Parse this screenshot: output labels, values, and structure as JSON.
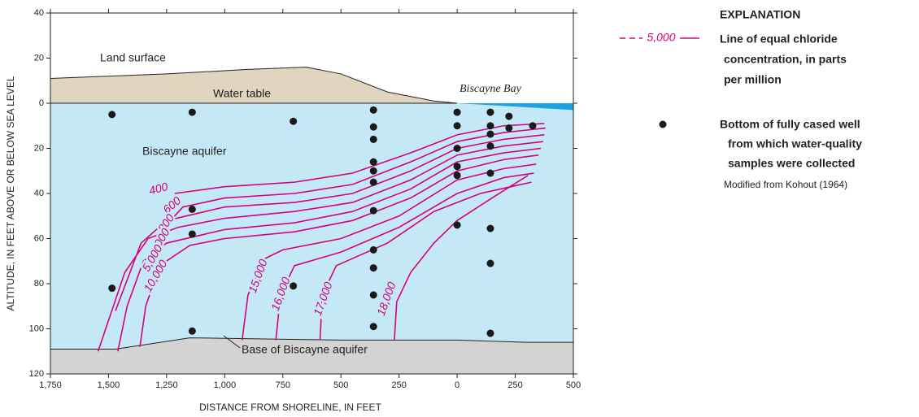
{
  "chart_data": {
    "type": "cross-section",
    "x_label": "DISTANCE FROM SHORELINE, IN FEET",
    "y_label": "ALTITUDE, IN FEET ABOVE OR BELOW SEA LEVEL",
    "xlim": [
      -1750,
      500
    ],
    "ylim": [
      -120,
      40
    ],
    "xticks": [
      {
        "value": -1750,
        "label": "1,750"
      },
      {
        "value": -1500,
        "label": "1,500"
      },
      {
        "value": -1250,
        "label": "1,250"
      },
      {
        "value": -1000,
        "label": "1,000"
      },
      {
        "value": -750,
        "label": "750"
      },
      {
        "value": -500,
        "label": "500"
      },
      {
        "value": -250,
        "label": "250"
      },
      0,
      250,
      500
    ],
    "yticks": [
      40,
      20,
      0,
      {
        "value": -20,
        "label": "20"
      },
      {
        "value": -40,
        "label": "40"
      },
      {
        "value": -60,
        "label": "60"
      },
      {
        "value": -80,
        "label": "80"
      },
      {
        "value": -100,
        "label": "100"
      },
      {
        "value": -120,
        "label": "120"
      }
    ],
    "contour_color": "#d6007e",
    "well_color": "#1a1a1a",
    "land_surface": {
      "x": [
        -1750,
        -1250,
        -900,
        -650,
        -500,
        -300,
        -100,
        0
      ],
      "y": [
        11,
        13,
        15,
        16,
        13,
        5,
        1,
        0
      ]
    },
    "water_table": {
      "x": [
        -1750,
        0
      ],
      "y": [
        0,
        0
      ]
    },
    "bay_bottom": {
      "x": [
        0,
        500
      ],
      "y": [
        0,
        -3
      ]
    },
    "aquifer_base": {
      "x": [
        -1750,
        -1470,
        -1150,
        -500,
        0,
        300,
        500
      ],
      "y": [
        -109,
        -109,
        -104,
        -105,
        -105,
        -106,
        -106
      ]
    },
    "annotations": {
      "land": "Land surface",
      "water_table": "Water table",
      "bay": "Biscayne Bay",
      "aquifer": "Biscayne aquifer",
      "base": "Base of Biscayne aquifer"
    },
    "contours": [
      {
        "name": "400",
        "x": [
          -1215,
          -1000,
          -700,
          -450,
          -200,
          0,
          200,
          375
        ],
        "y": [
          -40,
          -37,
          -35,
          -31,
          -22,
          -14,
          -10,
          -9
        ]
      },
      {
        "name": "600",
        "x": [
          -1260,
          -1180,
          -1000,
          -700,
          -450,
          -200,
          0,
          200,
          380
        ],
        "y": [
          -55,
          -46,
          -42,
          -40,
          -36,
          -26,
          -17,
          -13,
          -11
        ]
      },
      {
        "name": "800",
        "x": [
          -1470,
          -1360,
          -1250,
          -1000,
          -700,
          -450,
          -200,
          0,
          200,
          375
        ],
        "y": [
          -92,
          -62,
          -52,
          -46,
          -44,
          -40,
          -30,
          -20,
          -16,
          -14
        ]
      },
      {
        "name": "1,000",
        "x": [
          -1545,
          -1430,
          -1330,
          -1200,
          -1000,
          -700,
          -450,
          -200,
          0,
          200,
          370
        ],
        "y": [
          -110,
          -75,
          -60,
          -55,
          -51,
          -48,
          -44,
          -34,
          -23,
          -19,
          -17
        ]
      },
      {
        "name": "5,000",
        "x": [
          -1460,
          -1420,
          -1350,
          -1250,
          -1000,
          -700,
          -450,
          -200,
          0,
          200,
          360
        ],
        "y": [
          -110,
          -90,
          -70,
          -62,
          -56,
          -53,
          -48,
          -38,
          -26,
          -22,
          -20
        ]
      },
      {
        "name": "10,000",
        "x": [
          -1365,
          -1340,
          -1280,
          -1150,
          -1000,
          -700,
          -450,
          -200,
          0,
          200,
          350
        ],
        "y": [
          -108,
          -90,
          -72,
          -63,
          -60,
          -57,
          -52,
          -42,
          -30,
          -25,
          -23
        ]
      },
      {
        "name": "15,000",
        "x": [
          -925,
          -900,
          -830,
          -750,
          -500,
          -250,
          0,
          200,
          340
        ],
        "y": [
          -105,
          -85,
          -69,
          -65,
          -60,
          -50,
          -34,
          -29,
          -27
        ]
      },
      {
        "name": "16,000",
        "x": [
          -780,
          -760,
          -700,
          -500,
          -250,
          0,
          200,
          330
        ],
        "y": [
          -105,
          -85,
          -72,
          -66,
          -55,
          -40,
          -33,
          -31
        ]
      },
      {
        "name": "17,000",
        "x": [
          -590,
          -580,
          -520,
          -300,
          -100,
          100,
          320
        ],
        "y": [
          -105,
          -85,
          -72,
          -62,
          -48,
          -40,
          -35
        ]
      },
      {
        "name": "18,000",
        "x": [
          -270,
          -260,
          -200,
          -100,
          0,
          150,
          305
        ],
        "y": [
          -105,
          -88,
          -75,
          -62,
          -52,
          -42,
          -32
        ]
      }
    ],
    "wells": {
      "x": [
        -1485,
        -1140,
        -705,
        -360,
        -360,
        -360,
        -360,
        -360,
        -360,
        -360,
        -360,
        -360,
        -360,
        -360,
        0,
        0,
        0,
        0,
        0,
        0,
        143,
        143,
        143,
        143,
        143,
        143,
        143,
        143,
        223,
        223,
        325,
        -1140,
        -1140,
        -1485,
        -705,
        -1140
      ],
      "y": [
        -5,
        -4,
        -8,
        -3,
        -10.5,
        -16,
        -26,
        -30,
        -35,
        -47.6,
        -65,
        -73,
        -85,
        -99,
        -4,
        -10,
        -20,
        -28,
        -32,
        -54,
        -4,
        -10,
        -13.7,
        -19,
        -31,
        -55.5,
        -71,
        -102,
        -5.8,
        -11,
        -10,
        -47,
        -58,
        -82,
        -81,
        -101
      ]
    },
    "explanation": {
      "title": "EXPLANATION",
      "contour_sample": "5,000",
      "contour_text": [
        "Line of equal chloride",
        "concentration, in parts",
        "per million"
      ],
      "well_text": [
        "Bottom of fully cased well",
        "from which water-quality",
        "samples were collected"
      ],
      "source": "Modified from Kohout (1964)"
    }
  }
}
